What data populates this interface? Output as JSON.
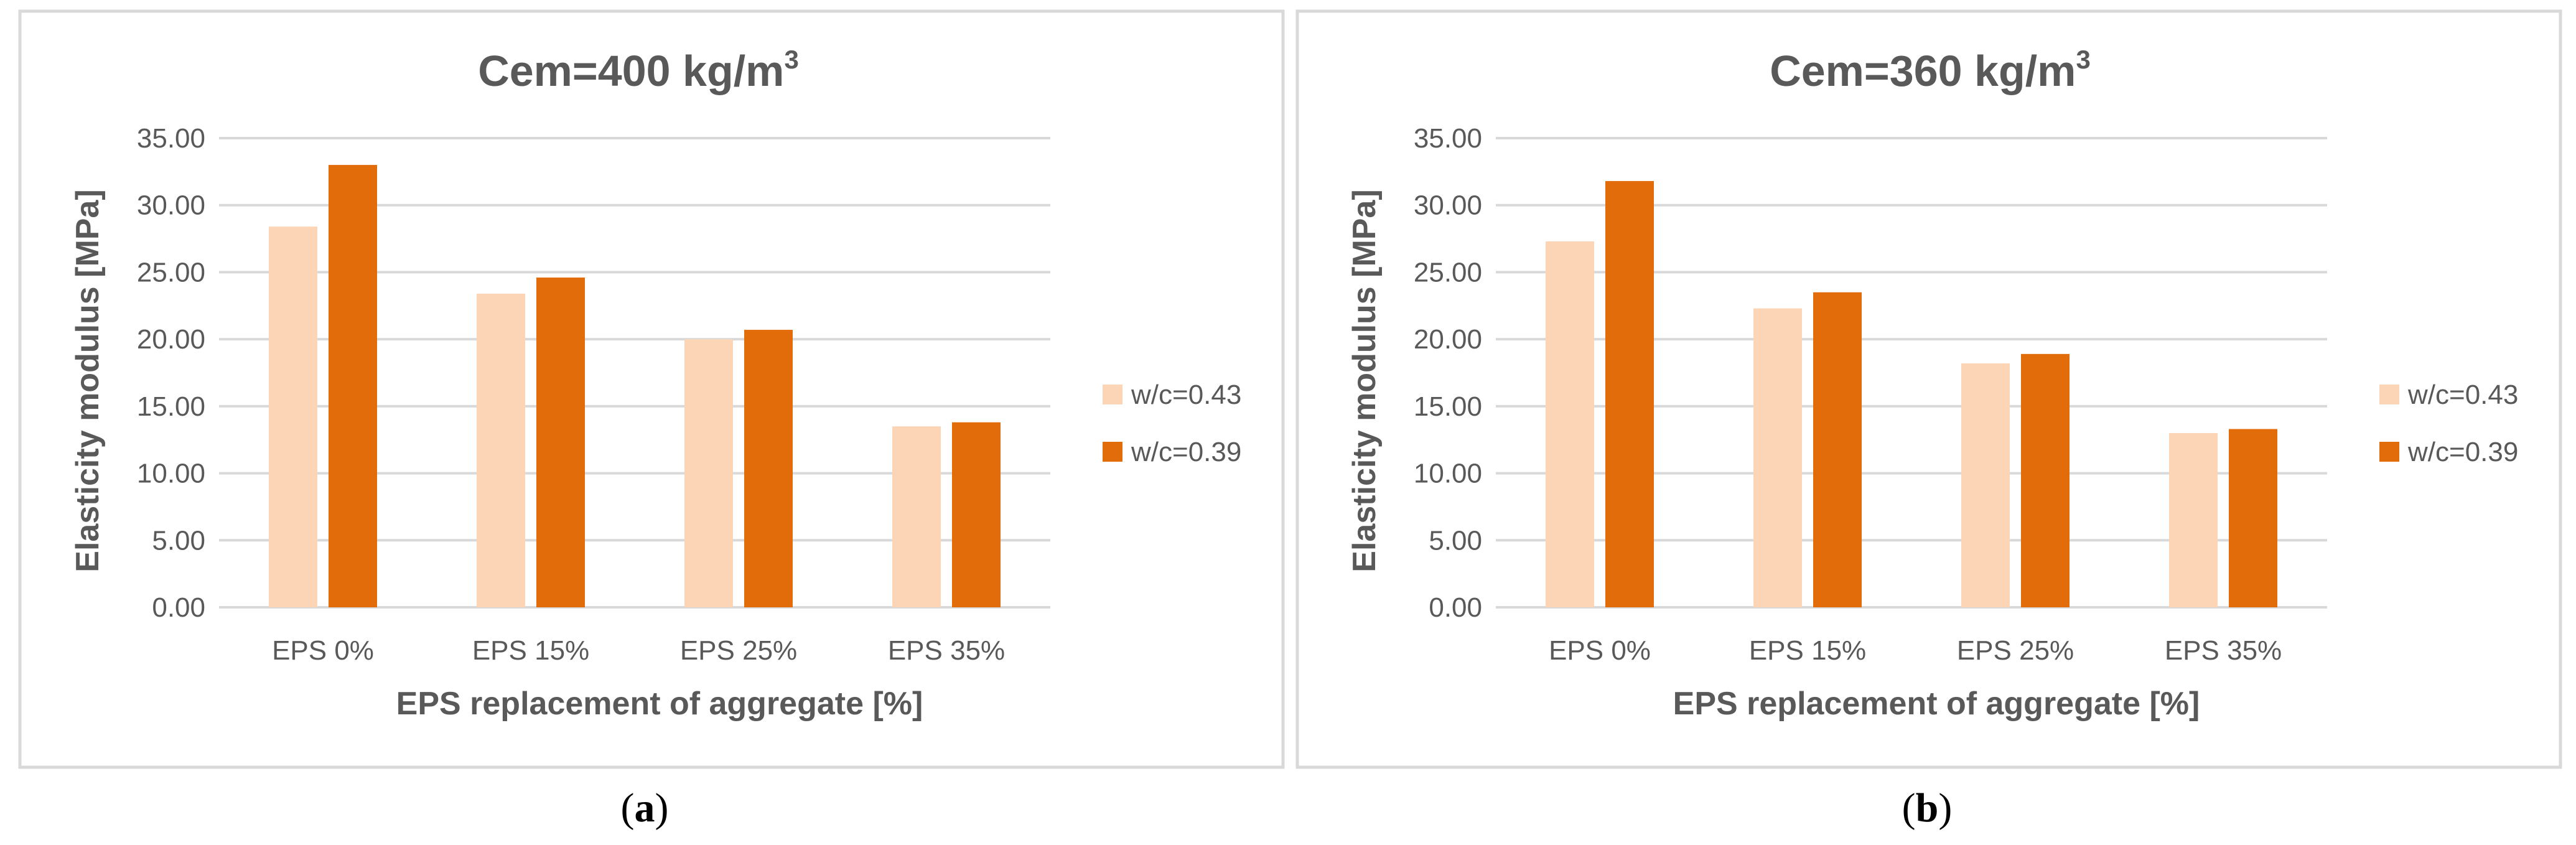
{
  "chart_data": [
    {
      "type": "bar",
      "title_prefix": "Cem=400 kg/m",
      "title_superscript": "3",
      "xlabel": "EPS replacement of aggregate [%]",
      "ylabel": "Elasticity modulus [MPa]",
      "ylim": [
        0,
        35
      ],
      "yticks": [
        "0.00",
        "5.00",
        "10.00",
        "15.00",
        "20.00",
        "25.00",
        "30.00",
        "35.00"
      ],
      "categories": [
        "EPS 0%",
        "EPS 15%",
        "EPS 25%",
        "EPS 35%"
      ],
      "series": [
        {
          "name": "w/c=0.43",
          "color": "#fbd5b5",
          "values": [
            28.4,
            23.4,
            20.0,
            13.5
          ]
        },
        {
          "name": "w/c=0.39",
          "color": "#e36c0a",
          "values": [
            33.0,
            24.6,
            20.7,
            13.8
          ]
        }
      ],
      "legend_position": "right",
      "grid": true,
      "caption_open": "(",
      "caption_letter": "a",
      "caption_close": ")"
    },
    {
      "type": "bar",
      "title_prefix": "Cem=360 kg/m",
      "title_superscript": "3",
      "xlabel": "EPS replacement of aggregate [%]",
      "ylabel": "Elasticity modulus [MPa]",
      "ylim": [
        0,
        35
      ],
      "yticks": [
        "0.00",
        "5.00",
        "10.00",
        "15.00",
        "20.00",
        "25.00",
        "30.00",
        "35.00"
      ],
      "categories": [
        "EPS 0%",
        "EPS 15%",
        "EPS 25%",
        "EPS 35%"
      ],
      "series": [
        {
          "name": "w/c=0.43",
          "color": "#fbd5b5",
          "values": [
            27.3,
            22.3,
            18.2,
            13.0
          ]
        },
        {
          "name": "w/c=0.39",
          "color": "#e36c0a",
          "values": [
            31.8,
            23.5,
            18.9,
            13.3
          ]
        }
      ],
      "legend_position": "right",
      "grid": true,
      "caption_open": "(",
      "caption_letter": "b",
      "caption_close": ")"
    }
  ]
}
